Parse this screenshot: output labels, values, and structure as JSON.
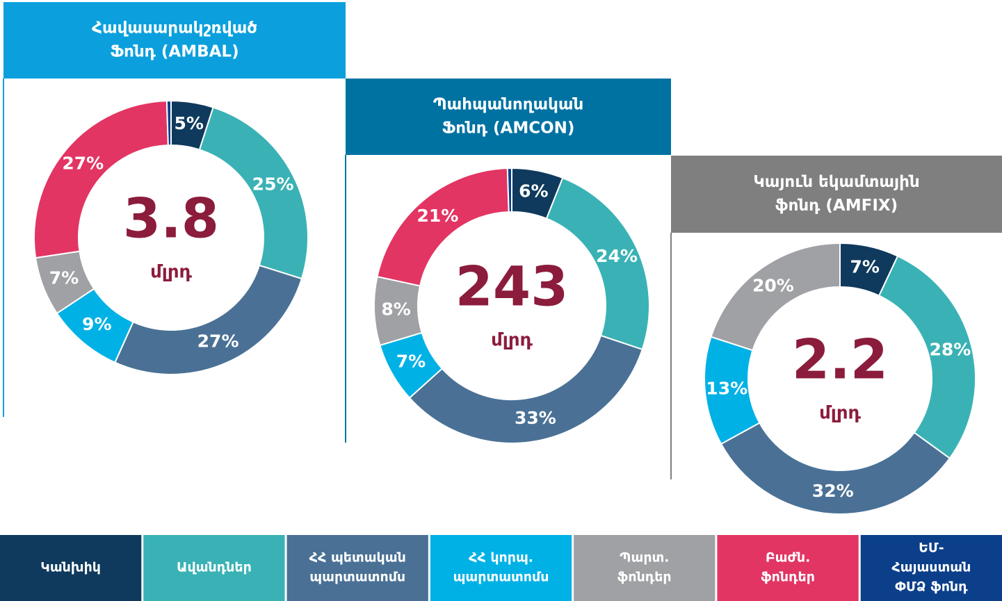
{
  "chart_data": [
    {
      "type": "pie",
      "title": [
        "Հավասարակշռված",
        "Ֆոնդ (AMBAL)"
      ],
      "title_color": "#0ba0dd",
      "values": [
        5,
        25,
        27,
        9,
        7,
        27,
        0.5
      ],
      "value_labels": [
        "5%",
        "25%",
        "27%",
        "9%",
        "7%",
        "27%",
        null
      ],
      "center_text": "3.8",
      "center_unit": "մլրդ"
    },
    {
      "type": "pie",
      "title": [
        "Պահպանողական",
        "Ֆոնդ (AMCON)"
      ],
      "title_color": "#0072a2",
      "values": [
        6,
        24,
        33,
        7,
        8,
        21,
        0.5
      ],
      "value_labels": [
        "6%",
        "24%",
        "33%",
        "7%",
        "8%",
        "21%",
        null
      ],
      "center_text": "243",
      "center_unit": "մլրդ"
    },
    {
      "type": "pie",
      "title": [
        "Կայուն եկամտային",
        "ֆոնդ (AMFIX)"
      ],
      "title_color": "#7f7f7f",
      "values": [
        7,
        28,
        32,
        13,
        20,
        0,
        0
      ],
      "value_labels": [
        "7%",
        "28%",
        "32%",
        "13%",
        "20%",
        null,
        null
      ],
      "center_text": "2.2",
      "center_unit": "մլրդ"
    }
  ],
  "legend": {
    "labels": [
      [
        "Կանխիկ"
      ],
      [
        "Ավանդներ"
      ],
      [
        "ՀՀ պետական",
        "պարտատոմս"
      ],
      [
        "ՀՀ կորպ.",
        "պարտատոմս"
      ],
      [
        "Պարտ.",
        "ֆոնդեր"
      ],
      [
        "Բաժն.",
        "ֆոնդեր"
      ],
      [
        "ԵՄ-",
        "Հայաստան",
        "ՓՄՁ ֆոնդ"
      ]
    ],
    "colors": [
      "#0f3a5d",
      "#3ab2b5",
      "#4a7195",
      "#00b1e6",
      "#a0a1a4",
      "#e23563",
      "#0b3f8a"
    ]
  }
}
